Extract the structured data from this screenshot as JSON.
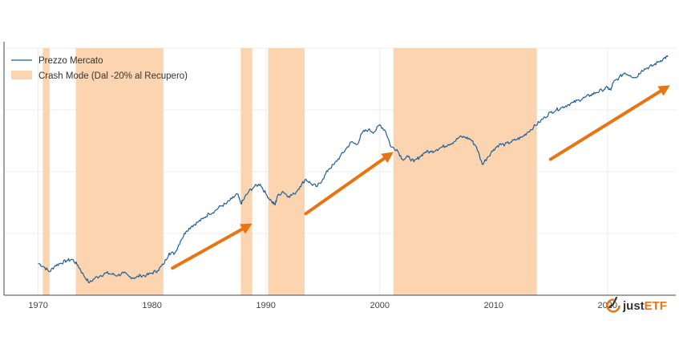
{
  "chart_data": {
    "type": "line",
    "title": "",
    "xlabel": "",
    "ylabel": "",
    "xlim": [
      1967,
      2026
    ],
    "ylim": [
      0,
      100
    ],
    "y_ticks_labels": "hidden",
    "grid": "on",
    "legend_position": "top-left",
    "x_ticks": [
      1970,
      1980,
      1990,
      2000,
      2010,
      2020
    ],
    "x_tick_labels": [
      "1970",
      "1980",
      "1990",
      "2000",
      "2010",
      "2020"
    ],
    "series": [
      {
        "name": "Prezzo Mercato",
        "color": "#1f5f99",
        "x": [
          1970.0,
          1970.5,
          1971.0,
          1971.5,
          1972.0,
          1972.5,
          1973.0,
          1973.5,
          1974.0,
          1974.5,
          1975.0,
          1975.5,
          1976.0,
          1976.5,
          1977.0,
          1977.5,
          1978.0,
          1978.5,
          1979.0,
          1979.5,
          1980.0,
          1980.5,
          1981.0,
          1981.5,
          1982.0,
          1982.5,
          1983.0,
          1983.5,
          1984.0,
          1984.5,
          1985.0,
          1985.5,
          1986.0,
          1986.5,
          1987.0,
          1987.5,
          1987.8,
          1988.0,
          1988.5,
          1989.0,
          1989.5,
          1990.0,
          1990.5,
          1990.8,
          1991.0,
          1991.5,
          1992.0,
          1992.5,
          1993.0,
          1993.5,
          1994.0,
          1994.5,
          1995.0,
          1995.5,
          1996.0,
          1996.5,
          1997.0,
          1997.5,
          1998.0,
          1998.5,
          1999.0,
          1999.5,
          2000.0,
          2000.5,
          2001.0,
          2001.5,
          2002.0,
          2002.5,
          2003.0,
          2003.5,
          2004.0,
          2004.5,
          2005.0,
          2005.5,
          2006.0,
          2006.5,
          2007.0,
          2007.5,
          2008.0,
          2008.5,
          2009.0,
          2009.5,
          2010.0,
          2010.5,
          2011.0,
          2011.5,
          2012.0,
          2012.5,
          2013.0,
          2013.5,
          2014.0,
          2014.5,
          2015.0,
          2015.5,
          2016.0,
          2016.5,
          2017.0,
          2017.5,
          2018.0,
          2018.5,
          2019.0,
          2019.5,
          2020.0,
          2020.3,
          2020.5,
          2021.0,
          2021.5,
          2022.0,
          2022.5,
          2023.0,
          2023.5,
          2024.0,
          2024.5,
          2025.0,
          2025.3
        ],
        "values": [
          13.0,
          11.5,
          9.5,
          12.0,
          13.0,
          14.0,
          14.5,
          12.0,
          8.0,
          5.0,
          7.0,
          8.0,
          9.0,
          8.5,
          8.0,
          9.0,
          7.5,
          7.0,
          8.0,
          8.0,
          9.0,
          10.0,
          12.5,
          17.0,
          17.0,
          22.0,
          26.0,
          28.0,
          29.5,
          31.0,
          33.0,
          34.0,
          36.0,
          37.0,
          39.0,
          41.0,
          37.0,
          38.5,
          42.0,
          44.0,
          45.0,
          41.0,
          38.0,
          36.5,
          40.0,
          42.0,
          40.0,
          41.0,
          44.0,
          47.0,
          45.0,
          44.0,
          47.0,
          51.0,
          53.0,
          56.0,
          59.0,
          62.0,
          61.0,
          66.0,
          67.0,
          66.0,
          69.0,
          66.5,
          60.0,
          59.0,
          55.0,
          56.0,
          54.0,
          56.0,
          58.0,
          58.0,
          59.0,
          60.0,
          61.0,
          62.0,
          64.0,
          64.0,
          63.0,
          60.0,
          53.0,
          56.0,
          59.0,
          61.0,
          61.0,
          62.0,
          63.0,
          64.0,
          66.0,
          68.0,
          70.0,
          72.0,
          74.0,
          75.0,
          76.0,
          77.0,
          78.0,
          79.0,
          80.0,
          81.0,
          82.0,
          83.0,
          84.0,
          83.0,
          86.0,
          88.0,
          90.0,
          89.0,
          88.0,
          91.0,
          92.0,
          93.0,
          94.5,
          96.0,
          96.5
        ]
      }
    ],
    "shaded_regions": {
      "name": "Crash Mode (Dal -20% al Recupero)",
      "color": "#fcd5b0",
      "ranges": [
        [
          1970.4,
          1971.0
        ],
        [
          1973.3,
          1981.0
        ],
        [
          1987.8,
          1988.8
        ],
        [
          1990.2,
          1993.4
        ],
        [
          2001.2,
          2013.8
        ]
      ]
    },
    "annotations": {
      "type": "arrows",
      "color": "#e87511",
      "items": [
        {
          "x1": 1981.8,
          "y1": 11.0,
          "x2": 1988.8,
          "y2": 29.0
        },
        {
          "x1": 1993.5,
          "y1": 33.0,
          "x2": 2001.2,
          "y2": 58.0
        },
        {
          "x1": 2015.0,
          "y1": 55.0,
          "x2": 2025.5,
          "y2": 85.0
        }
      ]
    }
  },
  "legend": {
    "items": [
      {
        "label": "Prezzo Mercato",
        "kind": "line",
        "color": "#1f5f99"
      },
      {
        "label": "Crash Mode (Dal -20% al Recupero)",
        "kind": "patch",
        "color": "#fcd5b0"
      }
    ]
  },
  "branding": {
    "logo_text_part1": "just",
    "logo_text_part2": "ETF",
    "logo_icon": "justetf-logo-icon",
    "color_dark": "#333333",
    "color_accent": "#e87511"
  }
}
